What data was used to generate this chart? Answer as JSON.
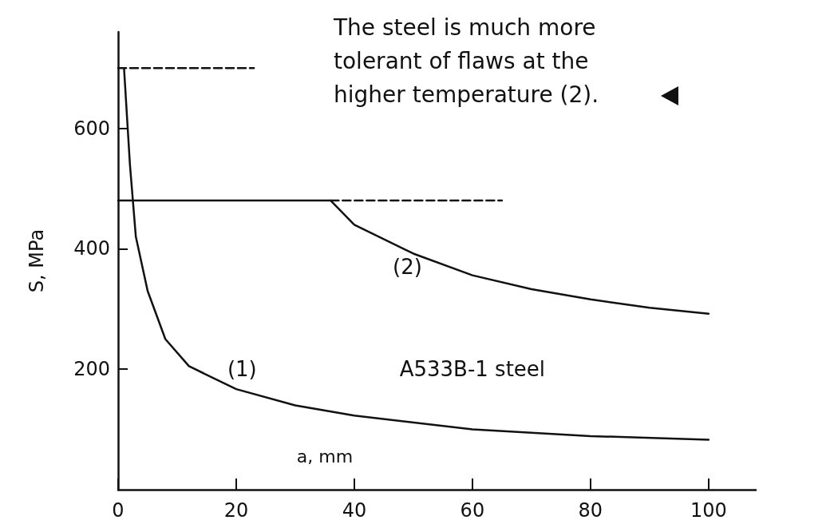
{
  "chart_data": {
    "type": "line",
    "xlabel": "a, mm",
    "ylabel": "S, MPa",
    "xlim": [
      0,
      108
    ],
    "xticks": [
      0,
      20,
      40,
      60,
      80,
      100
    ],
    "ylim": [
      0,
      760
    ],
    "yticks": [
      200,
      400,
      600
    ],
    "marker": "none",
    "series": [
      {
        "color": "#111111",
        "x": [
          1,
          2,
          3,
          5,
          8,
          12,
          20,
          30,
          40,
          60,
          80,
          100
        ],
        "values": [
          700,
          540,
          420,
          330,
          250,
          205,
          167,
          140,
          123,
          100,
          89,
          83
        ]
      },
      {
        "color": "#111111",
        "x": [
          0,
          36,
          40,
          50,
          60,
          70,
          80,
          90,
          100
        ],
        "values": [
          480,
          480,
          440,
          392,
          356,
          333,
          316,
          302,
          292
        ]
      },
      {
        "color": "#111111",
        "line_style": "dashed",
        "x": [
          0,
          23
        ],
        "values": [
          700,
          700
        ]
      },
      {
        "color": "#111111",
        "line_style": "dashed",
        "x": [
          36,
          65
        ],
        "values": [
          480,
          480
        ]
      }
    ],
    "annotations": [
      "The steel is much more tolerant of flaws at the higher temperature (2).",
      "A533B-1 steel",
      "(1)",
      "(2)"
    ]
  }
}
